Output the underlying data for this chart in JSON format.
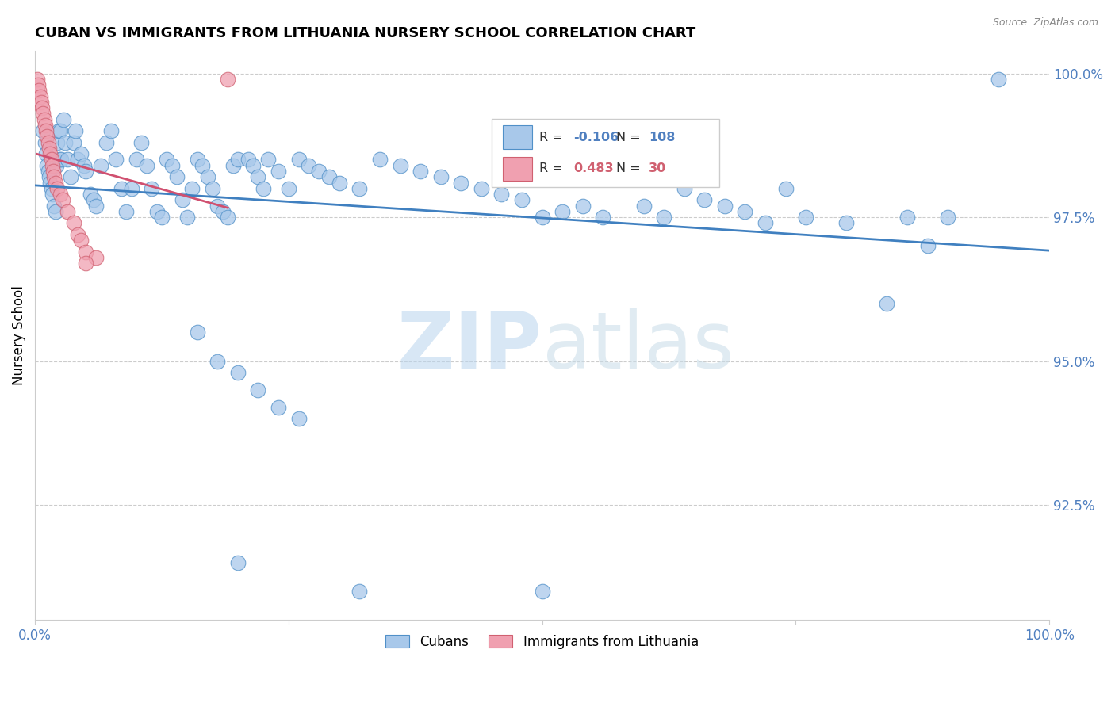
{
  "title": "CUBAN VS IMMIGRANTS FROM LITHUANIA NURSERY SCHOOL CORRELATION CHART",
  "source": "Source: ZipAtlas.com",
  "ylabel": "Nursery School",
  "yaxis_values": [
    1.0,
    0.975,
    0.95,
    0.925
  ],
  "legend_blue_R": "-0.106",
  "legend_blue_N": "108",
  "legend_pink_R": "0.483",
  "legend_pink_N": "30",
  "watermark_zip": "ZIP",
  "watermark_atlas": "atlas",
  "blue_fill": "#a8c8ea",
  "blue_edge": "#5090c8",
  "pink_fill": "#f0a0b0",
  "pink_edge": "#d06070",
  "line_blue": "#4080c0",
  "line_pink": "#d05070",
  "grid_color": "#cccccc",
  "tick_color": "#5080c0",
  "blue_x": [
    0.008,
    0.01,
    0.011,
    0.012,
    0.013,
    0.014,
    0.015,
    0.016,
    0.017,
    0.018,
    0.019,
    0.02,
    0.021,
    0.022,
    0.023,
    0.024,
    0.025,
    0.026,
    0.028,
    0.03,
    0.032,
    0.035,
    0.038,
    0.04,
    0.042,
    0.045,
    0.048,
    0.05,
    0.055,
    0.058,
    0.06,
    0.065,
    0.07,
    0.075,
    0.08,
    0.085,
    0.09,
    0.095,
    0.1,
    0.105,
    0.11,
    0.115,
    0.12,
    0.125,
    0.13,
    0.135,
    0.14,
    0.145,
    0.15,
    0.155,
    0.16,
    0.165,
    0.17,
    0.175,
    0.18,
    0.185,
    0.19,
    0.195,
    0.2,
    0.21,
    0.215,
    0.22,
    0.225,
    0.23,
    0.24,
    0.25,
    0.26,
    0.27,
    0.28,
    0.29,
    0.3,
    0.32,
    0.34,
    0.36,
    0.38,
    0.4,
    0.42,
    0.44,
    0.46,
    0.48,
    0.5,
    0.52,
    0.54,
    0.56,
    0.58,
    0.6,
    0.62,
    0.64,
    0.66,
    0.68,
    0.7,
    0.72,
    0.74,
    0.76,
    0.8,
    0.84,
    0.86,
    0.88,
    0.9,
    0.95,
    0.16,
    0.18,
    0.2,
    0.22,
    0.24,
    0.26,
    0.2,
    0.32,
    0.5
  ],
  "blue_y": [
    0.99,
    0.988,
    0.986,
    0.984,
    0.983,
    0.982,
    0.981,
    0.98,
    0.979,
    0.985,
    0.977,
    0.976,
    0.984,
    0.988,
    0.99,
    0.985,
    0.99,
    0.985,
    0.992,
    0.988,
    0.985,
    0.982,
    0.988,
    0.99,
    0.985,
    0.986,
    0.984,
    0.983,
    0.979,
    0.978,
    0.977,
    0.984,
    0.988,
    0.99,
    0.985,
    0.98,
    0.976,
    0.98,
    0.985,
    0.988,
    0.984,
    0.98,
    0.976,
    0.975,
    0.985,
    0.984,
    0.982,
    0.978,
    0.975,
    0.98,
    0.985,
    0.984,
    0.982,
    0.98,
    0.977,
    0.976,
    0.975,
    0.984,
    0.985,
    0.985,
    0.984,
    0.982,
    0.98,
    0.985,
    0.983,
    0.98,
    0.985,
    0.984,
    0.983,
    0.982,
    0.981,
    0.98,
    0.985,
    0.984,
    0.983,
    0.982,
    0.981,
    0.98,
    0.979,
    0.978,
    0.975,
    0.976,
    0.977,
    0.975,
    0.985,
    0.977,
    0.975,
    0.98,
    0.978,
    0.977,
    0.976,
    0.974,
    0.98,
    0.975,
    0.974,
    0.96,
    0.975,
    0.97,
    0.975,
    0.999,
    0.955,
    0.95,
    0.948,
    0.945,
    0.942,
    0.94,
    0.915,
    0.91,
    0.91
  ],
  "pink_x": [
    0.002,
    0.003,
    0.004,
    0.005,
    0.006,
    0.007,
    0.008,
    0.009,
    0.01,
    0.011,
    0.012,
    0.013,
    0.014,
    0.015,
    0.016,
    0.017,
    0.018,
    0.019,
    0.02,
    0.022,
    0.025,
    0.027,
    0.032,
    0.038,
    0.042,
    0.045,
    0.05,
    0.06,
    0.19,
    0.05
  ],
  "pink_y": [
    0.999,
    0.998,
    0.997,
    0.996,
    0.995,
    0.994,
    0.993,
    0.992,
    0.991,
    0.99,
    0.989,
    0.988,
    0.987,
    0.986,
    0.985,
    0.984,
    0.983,
    0.982,
    0.981,
    0.98,
    0.979,
    0.978,
    0.976,
    0.974,
    0.972,
    0.971,
    0.969,
    0.968,
    0.999,
    0.967
  ]
}
